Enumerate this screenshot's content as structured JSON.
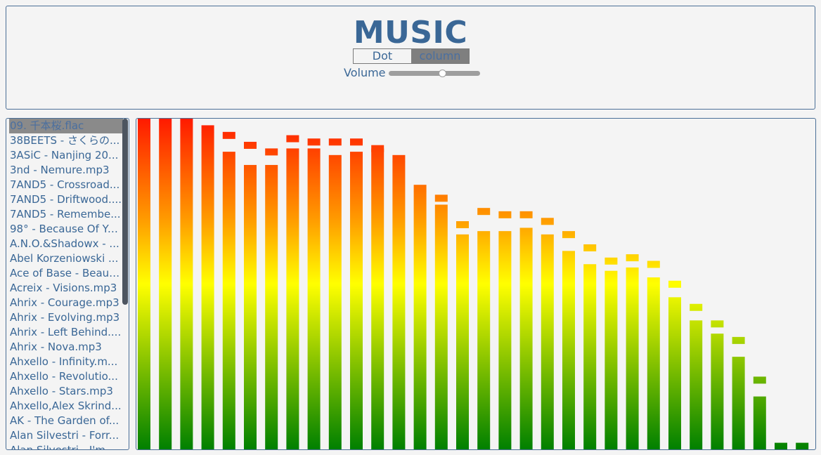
{
  "header": {
    "title": "MUSIC",
    "modes": [
      "Dot",
      "column"
    ],
    "active_mode": "column",
    "volume_label": "Volume",
    "volume_level": 0.6
  },
  "playlist": {
    "selected_index": 0,
    "tracks": [
      "09. 千本桜.flac",
      "38BEETS - さくらの...",
      "3ASiC - Nanjing 20...",
      "3nd - Nemure.mp3",
      "7AND5 - Crossroad...",
      "7AND5 - Driftwood....",
      "7AND5 - Remembe...",
      "98° - Because Of Yo...",
      "A.N.O.&Shadowx - ...",
      "Abel Korzeniowski ...",
      "Ace of Base - Beaut...",
      "Acreix - Visions.mp3",
      "Ahrix - Courage.mp3",
      "Ahrix - Evolving.mp3",
      "Ahrix - Left Behind....",
      "Ahrix - Nova.mp3",
      "Ahxello - Infinity.m...",
      "Ahxello - Revolutio...",
      "Ahxello - Stars.mp3",
      "Ahxello,Alex Skrind...",
      "AK - The Garden of...",
      "Alan Silvestri - Forr...",
      "Alan Silvestri - I'm F..."
    ]
  },
  "visualizer": {
    "colors": {
      "top": "#ff1a00",
      "upper": "#ff9900",
      "middle": "#ffff00",
      "bottom": "#008000"
    },
    "bars": [
      1.0,
      1.0,
      1.0,
      0.96,
      0.9,
      0.86,
      0.86,
      0.91,
      0.91,
      0.89,
      0.9,
      0.91,
      0.87,
      0.78,
      0.74,
      0.65,
      0.66,
      0.66,
      0.67,
      0.65,
      0.6,
      0.56,
      0.54,
      0.55,
      0.52,
      0.46,
      0.39,
      0.35,
      0.28,
      0.16,
      0.02,
      0.02
    ],
    "peaks": [
      1.0,
      1.0,
      1.0,
      0.98,
      0.96,
      0.93,
      0.91,
      0.95,
      0.94,
      0.94,
      0.94,
      0.92,
      0.89,
      0.8,
      0.77,
      0.69,
      0.73,
      0.72,
      0.72,
      0.7,
      0.66,
      0.62,
      0.58,
      0.59,
      0.57,
      0.51,
      0.44,
      0.39,
      0.34,
      0.22,
      0.0,
      0.0
    ]
  }
}
